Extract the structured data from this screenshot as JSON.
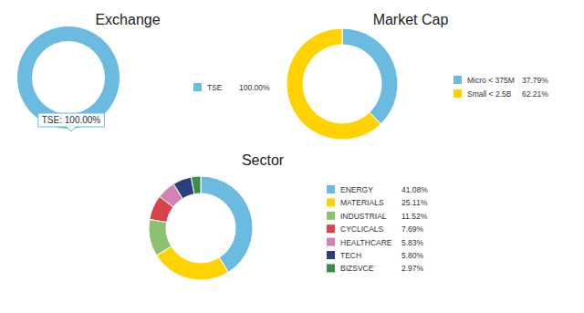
{
  "chart_data": [
    {
      "type": "donut",
      "title": "Exchange",
      "categories": [
        "TSE"
      ],
      "values": [
        100
      ],
      "value_labels": [
        "100.00%"
      ],
      "colors": [
        "#6bbbe0"
      ],
      "legend": "right",
      "annotations": [
        "TSE: 100.00%"
      ]
    },
    {
      "type": "donut",
      "title": "Market Cap",
      "categories": [
        "Micro < 375M",
        "Small < 2.5B"
      ],
      "values": [
        37.79,
        62.21
      ],
      "value_labels": [
        "37.79%",
        "62.21%"
      ],
      "colors": [
        "#6bbbe0",
        "#ffd200"
      ],
      "legend": "right"
    },
    {
      "type": "donut",
      "title": "Sector",
      "categories": [
        "ENERGY",
        "MATERIALS",
        "INDUSTRIAL",
        "CYCLICALS",
        "HEALTHCARE",
        "TECH",
        "BIZSVCE"
      ],
      "values": [
        41.08,
        25.11,
        11.52,
        7.69,
        5.83,
        5.8,
        2.97
      ],
      "value_labels": [
        "41.08%",
        "25.11%",
        "11.52%",
        "7.69%",
        "5.83%",
        "5.80%",
        "2.97%"
      ],
      "colors": [
        "#6bbbe0",
        "#ffd200",
        "#8cc26f",
        "#d9434c",
        "#d382b6",
        "#2b3f78",
        "#3d8c48"
      ],
      "legend": "right"
    }
  ]
}
